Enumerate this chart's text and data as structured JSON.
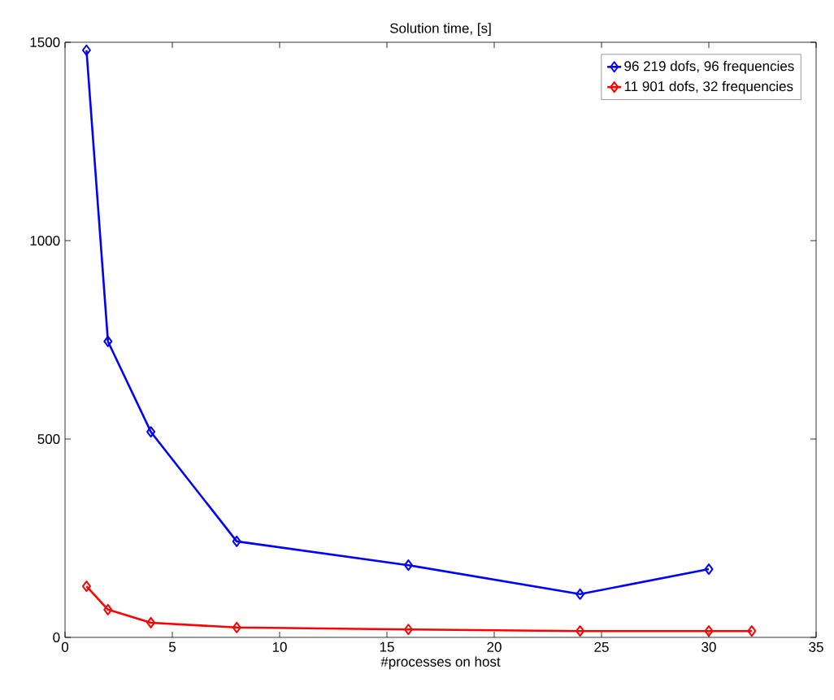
{
  "chart_data": {
    "type": "line",
    "title": "Solution time, [s]",
    "xlabel": "#processes on host",
    "series": [
      {
        "name": "96 219 dofs, 96 frequencies",
        "color": "#0000ff",
        "x": [
          1,
          2,
          4,
          8,
          16,
          24,
          30
        ],
        "values": [
          1480,
          746,
          518,
          242,
          182,
          109,
          172
        ]
      },
      {
        "name": "11 901 dofs, 32 frequencies",
        "color": "#ff0000",
        "x": [
          1,
          2,
          4,
          8,
          16,
          24,
          30,
          32
        ],
        "values": [
          129,
          70,
          37,
          25,
          20,
          16,
          16,
          16
        ]
      }
    ],
    "xlim": [
      0,
      35
    ],
    "ylim": [
      0,
      1500
    ],
    "xticks": [
      0,
      5,
      10,
      15,
      20,
      25,
      30,
      35
    ],
    "yticks": [
      0,
      500,
      1000,
      1500
    ],
    "grid": false,
    "legend": "top right",
    "marker": "diamond",
    "line_style": "solid"
  }
}
